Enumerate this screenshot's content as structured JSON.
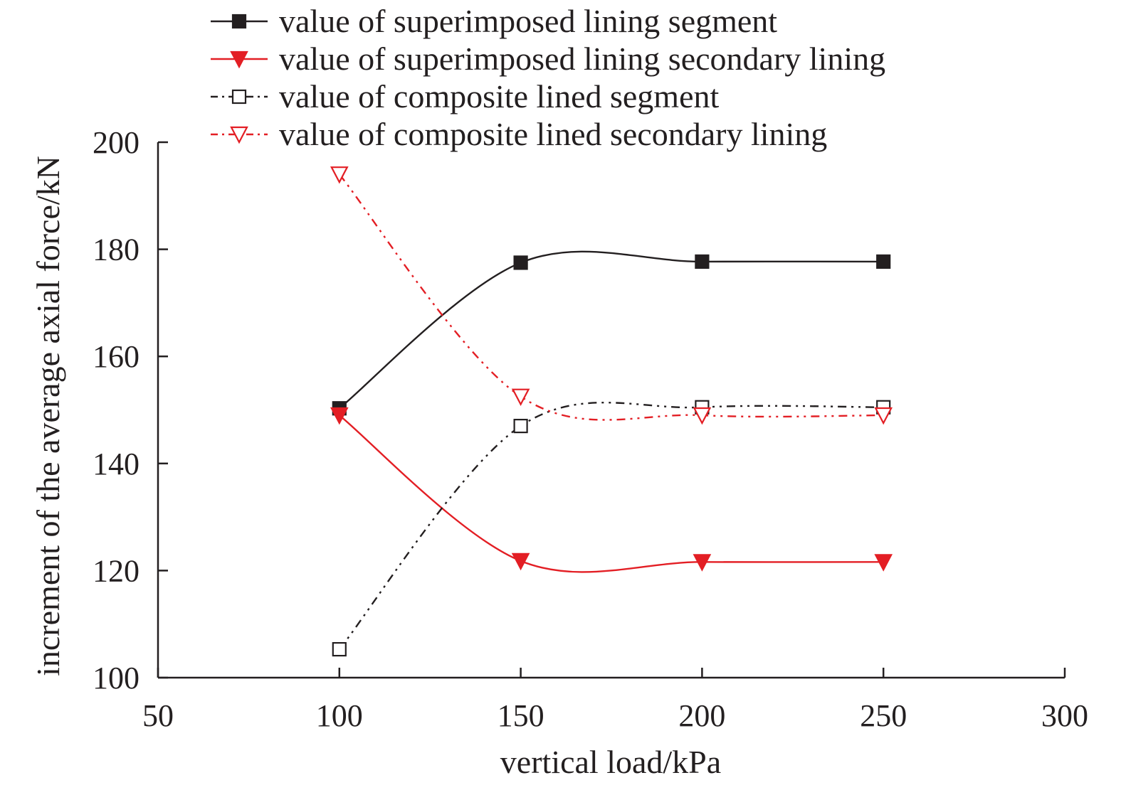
{
  "chart_data": {
    "type": "line",
    "xlabel": "vertical load/kPa",
    "ylabel": "increment of the average axial force/kN",
    "xlim": [
      50,
      300
    ],
    "ylim": [
      100,
      200
    ],
    "x_ticks": [
      "50",
      "100",
      "150",
      "200",
      "250",
      "300"
    ],
    "y_ticks": [
      "100",
      "120",
      "140",
      "160",
      "180",
      "200"
    ],
    "x": [
      100,
      150,
      200,
      250
    ],
    "legend_position": "top",
    "grid": false,
    "series": [
      {
        "name": "value of superimposed lining segment",
        "values": [
          150.3,
          177.5,
          177.7,
          177.7
        ],
        "color": "#231f20",
        "line_style": "solid",
        "marker": "filled-square"
      },
      {
        "name": "value of superimposed lining secondary lining",
        "values": [
          149.0,
          121.8,
          121.6,
          121.6
        ],
        "color": "#e31e24",
        "line_style": "solid",
        "marker": "filled-triangle-down"
      },
      {
        "name": "value of composite lined segment",
        "values": [
          105.3,
          147.0,
          150.5,
          150.5
        ],
        "color": "#231f20",
        "line_style": "dash-dot-dot",
        "marker": "open-square"
      },
      {
        "name": "value of composite lined secondary lining",
        "values": [
          194.0,
          152.5,
          149.0,
          149.0
        ],
        "color": "#e31e24",
        "line_style": "dash-dot-dot",
        "marker": "open-triangle-down"
      }
    ]
  }
}
